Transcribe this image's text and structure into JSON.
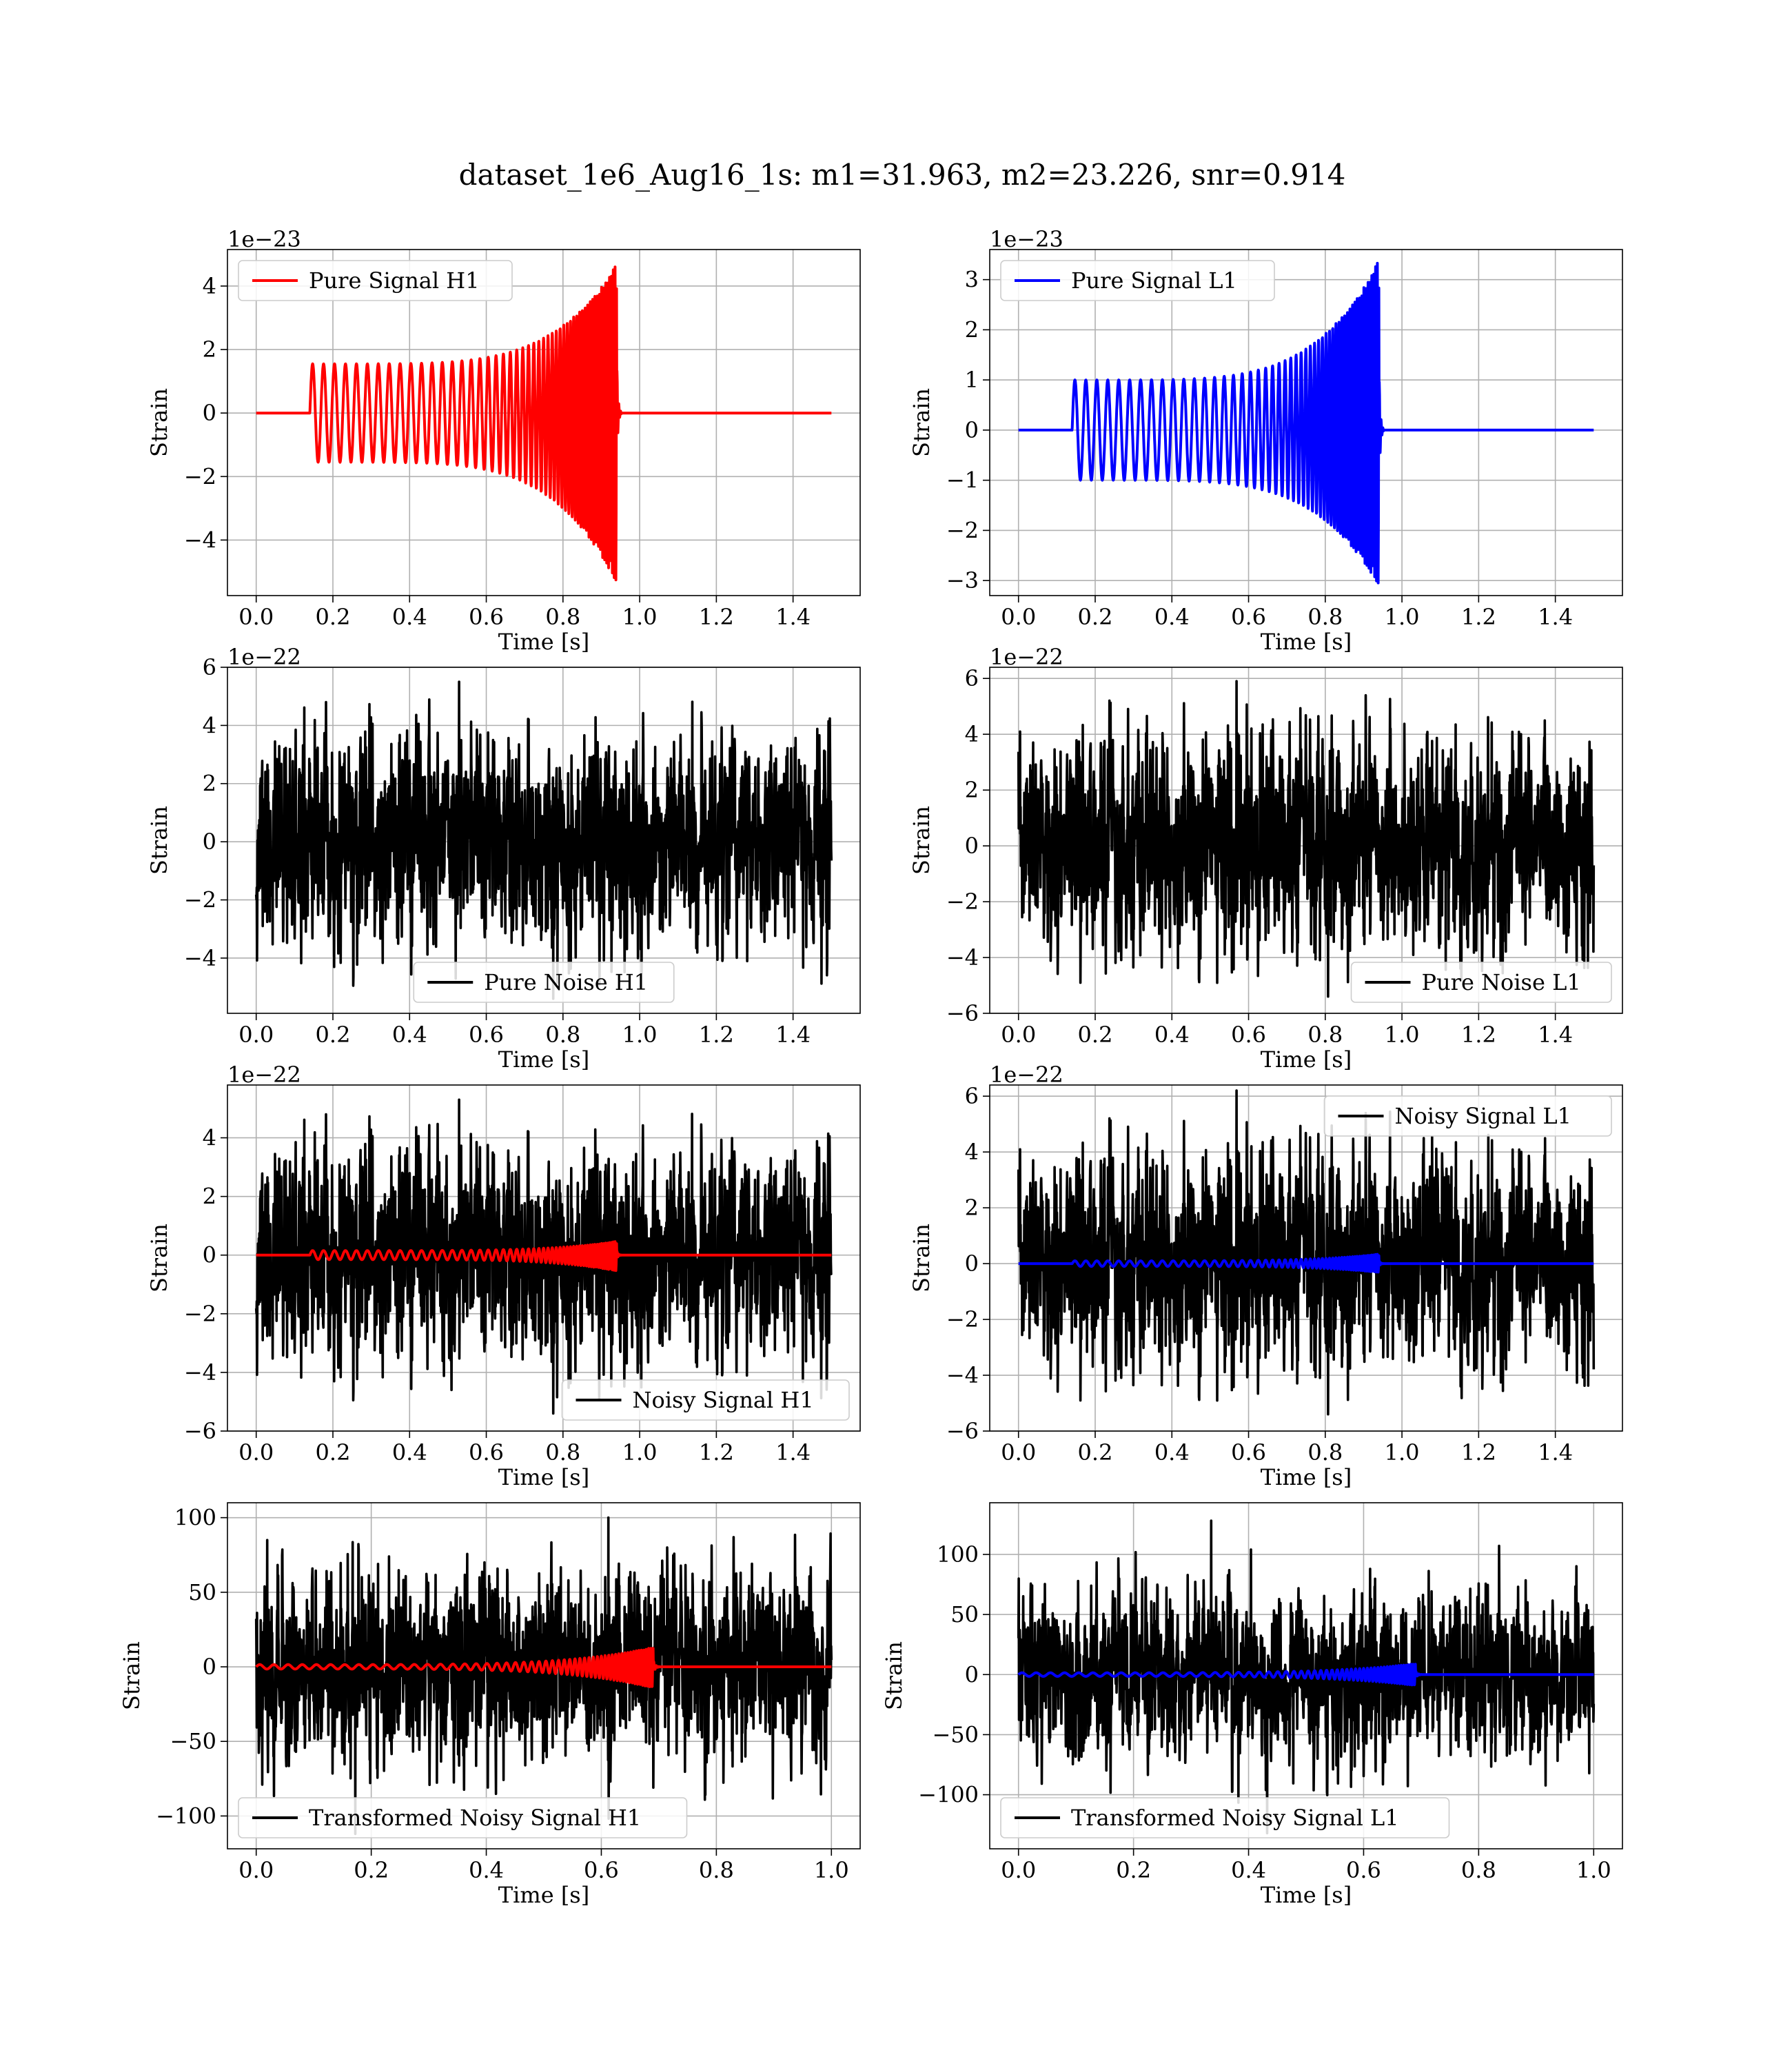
{
  "figure": {
    "title": "dataset_1e6_Aug16_1s: m1=31.963, m2=23.226, snr=0.914"
  },
  "chart_data": [
    {
      "id": "h1-pure-signal",
      "type": "line",
      "xlabel": "Time [s]",
      "ylabel": "Strain",
      "offset_text": "1e−23",
      "xlim": [
        -0.075,
        1.575
      ],
      "ylim": [
        -5.75,
        5.15
      ],
      "xticks": [
        0.0,
        0.2,
        0.4,
        0.6,
        0.8,
        1.0,
        1.2,
        1.4
      ],
      "xtick_labels": [
        "0.0",
        "0.2",
        "0.4",
        "0.6",
        "0.8",
        "1.0",
        "1.2",
        "1.4"
      ],
      "yticks": [
        -4,
        -2,
        0,
        2,
        4
      ],
      "ytick_labels": [
        "−4",
        "−2",
        "0",
        "2",
        "4"
      ],
      "grid": true,
      "legend_loc": "upper left",
      "series": [
        {
          "name": "Pure Signal H1",
          "kind": "chirp",
          "color": "#ff0000",
          "start": 0.14,
          "end": 0.94,
          "t_end": 1.5,
          "amp_start": 1.55,
          "amp_peak_pos": 4.7,
          "amp_peak_neg": -5.35,
          "cycles": 28,
          "in_legend": true
        }
      ]
    },
    {
      "id": "l1-pure-signal",
      "type": "line",
      "xlabel": "Time [s]",
      "ylabel": "Strain",
      "offset_text": "1e−23",
      "xlim": [
        -0.075,
        1.575
      ],
      "ylim": [
        -3.3,
        3.6
      ],
      "xticks": [
        0.0,
        0.2,
        0.4,
        0.6,
        0.8,
        1.0,
        1.2,
        1.4
      ],
      "xtick_labels": [
        "0.0",
        "0.2",
        "0.4",
        "0.6",
        "0.8",
        "1.0",
        "1.2",
        "1.4"
      ],
      "yticks": [
        -3,
        -2,
        -1,
        0,
        1,
        2,
        3
      ],
      "ytick_labels": [
        "−3",
        "−2",
        "−1",
        "0",
        "1",
        "2",
        "3"
      ],
      "grid": true,
      "legend_loc": "upper left",
      "series": [
        {
          "name": "Pure Signal L1",
          "kind": "chirp",
          "color": "#0000ff",
          "start": 0.14,
          "end": 0.94,
          "t_end": 1.5,
          "amp_start": 1.0,
          "amp_peak_pos": 3.4,
          "amp_peak_neg": -3.1,
          "cycles": 28,
          "in_legend": true
        }
      ]
    },
    {
      "id": "h1-pure-noise",
      "type": "line",
      "xlabel": "Time [s]",
      "ylabel": "Strain",
      "offset_text": "1e−22",
      "xlim": [
        -0.075,
        1.575
      ],
      "ylim": [
        -5.9,
        6.0
      ],
      "xticks": [
        0.0,
        0.2,
        0.4,
        0.6,
        0.8,
        1.0,
        1.2,
        1.4
      ],
      "xtick_labels": [
        "0.0",
        "0.2",
        "0.4",
        "0.6",
        "0.8",
        "1.0",
        "1.2",
        "1.4"
      ],
      "yticks": [
        -4,
        -2,
        0,
        2,
        4,
        6
      ],
      "ytick_labels": [
        "−4",
        "−2",
        "0",
        "2",
        "4",
        "6"
      ],
      "grid": true,
      "legend_loc": "lower center",
      "series": [
        {
          "name": "Pure Noise H1",
          "kind": "noise",
          "color": "#000000",
          "t_end": 1.5,
          "seed": 11,
          "sigma": 1.6,
          "max": 5.5,
          "min": -5.4,
          "in_legend": true
        }
      ]
    },
    {
      "id": "l1-pure-noise",
      "type": "line",
      "xlabel": "Time [s]",
      "ylabel": "Strain",
      "offset_text": "1e−22",
      "xlim": [
        -0.075,
        1.575
      ],
      "ylim": [
        -6.0,
        6.4
      ],
      "xticks": [
        0.0,
        0.2,
        0.4,
        0.6,
        0.8,
        1.0,
        1.2,
        1.4
      ],
      "xtick_labels": [
        "0.0",
        "0.2",
        "0.4",
        "0.6",
        "0.8",
        "1.0",
        "1.2",
        "1.4"
      ],
      "yticks": [
        -6,
        -4,
        -2,
        0,
        2,
        4,
        6
      ],
      "ytick_labels": [
        "−6",
        "−4",
        "−2",
        "0",
        "2",
        "4",
        "6"
      ],
      "grid": true,
      "legend_loc": "lower right",
      "series": [
        {
          "name": "Pure Noise L1",
          "kind": "noise",
          "color": "#000000",
          "t_end": 1.5,
          "seed": 23,
          "sigma": 1.7,
          "max": 5.9,
          "min": -5.4,
          "in_legend": true
        }
      ]
    },
    {
      "id": "h1-noisy-signal",
      "type": "line",
      "xlabel": "Time [s]",
      "ylabel": "Strain",
      "offset_text": "1e−22",
      "xlim": [
        -0.075,
        1.575
      ],
      "ylim": [
        -6.0,
        5.8
      ],
      "xticks": [
        0.0,
        0.2,
        0.4,
        0.6,
        0.8,
        1.0,
        1.2,
        1.4
      ],
      "xtick_labels": [
        "0.0",
        "0.2",
        "0.4",
        "0.6",
        "0.8",
        "1.0",
        "1.2",
        "1.4"
      ],
      "yticks": [
        -6,
        -4,
        -2,
        0,
        2,
        4
      ],
      "ytick_labels": [
        "−6",
        "−4",
        "−2",
        "0",
        "2",
        "4"
      ],
      "grid": true,
      "legend_loc": "lower right",
      "series": [
        {
          "name": "Noisy Signal H1",
          "kind": "noise",
          "color": "#000000",
          "t_end": 1.5,
          "seed": 11,
          "sigma": 1.6,
          "max": 5.3,
          "min": -5.4,
          "in_legend": true
        },
        {
          "name": "",
          "kind": "chirp",
          "color": "#ff0000",
          "start": 0.14,
          "end": 0.94,
          "t_end": 1.5,
          "amp_start": 0.155,
          "amp_peak_pos": 0.47,
          "amp_peak_neg": -0.535,
          "cycles": 28,
          "in_legend": false
        }
      ]
    },
    {
      "id": "l1-noisy-signal",
      "type": "line",
      "xlabel": "Time [s]",
      "ylabel": "Strain",
      "offset_text": "1e−22",
      "xlim": [
        -0.075,
        1.575
      ],
      "ylim": [
        -6.0,
        6.4
      ],
      "xticks": [
        0.0,
        0.2,
        0.4,
        0.6,
        0.8,
        1.0,
        1.2,
        1.4
      ],
      "xtick_labels": [
        "0.0",
        "0.2",
        "0.4",
        "0.6",
        "0.8",
        "1.0",
        "1.2",
        "1.4"
      ],
      "yticks": [
        -6,
        -4,
        -2,
        0,
        2,
        4,
        6
      ],
      "ytick_labels": [
        "−6",
        "−4",
        "−2",
        "0",
        "2",
        "4",
        "6"
      ],
      "grid": true,
      "legend_loc": "upper right",
      "series": [
        {
          "name": "Noisy Signal L1",
          "kind": "noise",
          "color": "#000000",
          "t_end": 1.5,
          "seed": 23,
          "sigma": 1.7,
          "max": 6.2,
          "min": -5.4,
          "in_legend": true
        },
        {
          "name": "",
          "kind": "chirp",
          "color": "#0000ff",
          "start": 0.14,
          "end": 0.94,
          "t_end": 1.5,
          "amp_start": 0.1,
          "amp_peak_pos": 0.34,
          "amp_peak_neg": -0.31,
          "cycles": 28,
          "in_legend": false
        }
      ]
    },
    {
      "id": "h1-transformed",
      "type": "line",
      "xlabel": "Time [s]",
      "ylabel": "Strain",
      "offset_text": "",
      "xlim": [
        -0.05,
        1.05
      ],
      "ylim": [
        -122,
        110
      ],
      "xticks": [
        0.0,
        0.2,
        0.4,
        0.6,
        0.8,
        1.0
      ],
      "xtick_labels": [
        "0.0",
        "0.2",
        "0.4",
        "0.6",
        "0.8",
        "1.0"
      ],
      "yticks": [
        -100,
        -50,
        0,
        50,
        100
      ],
      "ytick_labels": [
        "−100",
        "−50",
        "0",
        "50",
        "100"
      ],
      "grid": true,
      "legend_loc": "lower left",
      "series": [
        {
          "name": "Transformed Noisy Signal H1",
          "kind": "noise",
          "color": "#000000",
          "t_end": 1.0,
          "seed": 37,
          "sigma": 28,
          "max": 100,
          "min": -112,
          "in_legend": true
        },
        {
          "name": "",
          "kind": "chirp",
          "color": "#ff0000",
          "start": 0.0,
          "end": 0.69,
          "t_end": 1.0,
          "amp_start": 1.5,
          "amp_peak_pos": 13,
          "amp_peak_neg": -14,
          "cycles": 28,
          "in_legend": false
        }
      ]
    },
    {
      "id": "l1-transformed",
      "type": "line",
      "xlabel": "Time [s]",
      "ylabel": "Strain",
      "offset_text": "",
      "xlim": [
        -0.05,
        1.05
      ],
      "ylim": [
        -145,
        143
      ],
      "xticks": [
        0.0,
        0.2,
        0.4,
        0.6,
        0.8,
        1.0
      ],
      "xtick_labels": [
        "0.0",
        "0.2",
        "0.4",
        "0.6",
        "0.8",
        "1.0"
      ],
      "yticks": [
        -100,
        -50,
        0,
        50,
        100
      ],
      "ytick_labels": [
        "−100",
        "−50",
        "0",
        "50",
        "100"
      ],
      "grid": true,
      "legend_loc": "lower left",
      "series": [
        {
          "name": "Transformed Noisy Signal L1",
          "kind": "noise",
          "color": "#000000",
          "t_end": 1.0,
          "seed": 53,
          "sigma": 30,
          "max": 128,
          "min": -132,
          "in_legend": true
        },
        {
          "name": "",
          "kind": "chirp",
          "color": "#0000ff",
          "start": 0.0,
          "end": 0.69,
          "t_end": 1.0,
          "amp_start": 1.5,
          "amp_peak_pos": 9,
          "amp_peak_neg": -9,
          "cycles": 28,
          "in_legend": false
        }
      ]
    }
  ]
}
